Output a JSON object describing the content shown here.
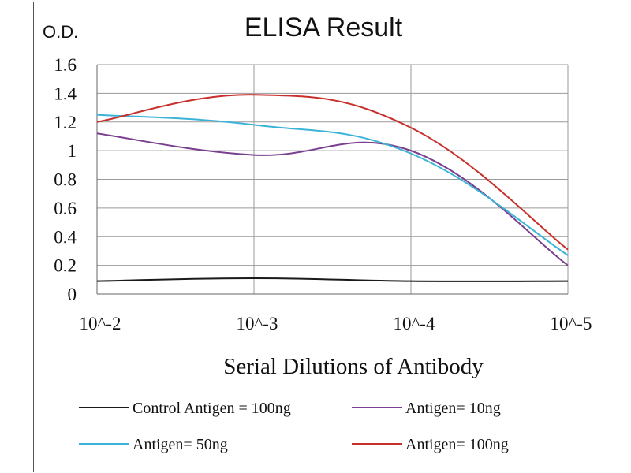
{
  "chart_data": {
    "type": "line",
    "title": "ELISA Result",
    "ylabel": "O.D.",
    "xlabel": "Serial Dilutions of Antibody",
    "categories": [
      "10^-2",
      "10^-3",
      "10^-4",
      "10^-5"
    ],
    "ylim": [
      0,
      1.6
    ],
    "yticks": [
      "0",
      "0.2",
      "0.4",
      "0.6",
      "0.8",
      "1",
      "1.2",
      "1.4",
      "1.6"
    ],
    "grid": true,
    "legend_position": "bottom",
    "series": [
      {
        "name": "Control Antigen = 100ng",
        "color": "#1a1a1a",
        "values": [
          0.09,
          0.11,
          0.09,
          0.09
        ]
      },
      {
        "name": "Antigen= 10ng",
        "color": "#7a3f8f",
        "values": [
          1.12,
          0.97,
          1.0,
          0.2
        ]
      },
      {
        "name": "Antigen= 50ng",
        "color": "#3bb3d6",
        "values": [
          1.25,
          1.18,
          0.98,
          0.27
        ]
      },
      {
        "name": "Antigen= 100ng",
        "color": "#c8302c",
        "values": [
          1.2,
          1.39,
          1.16,
          0.31
        ]
      }
    ]
  }
}
